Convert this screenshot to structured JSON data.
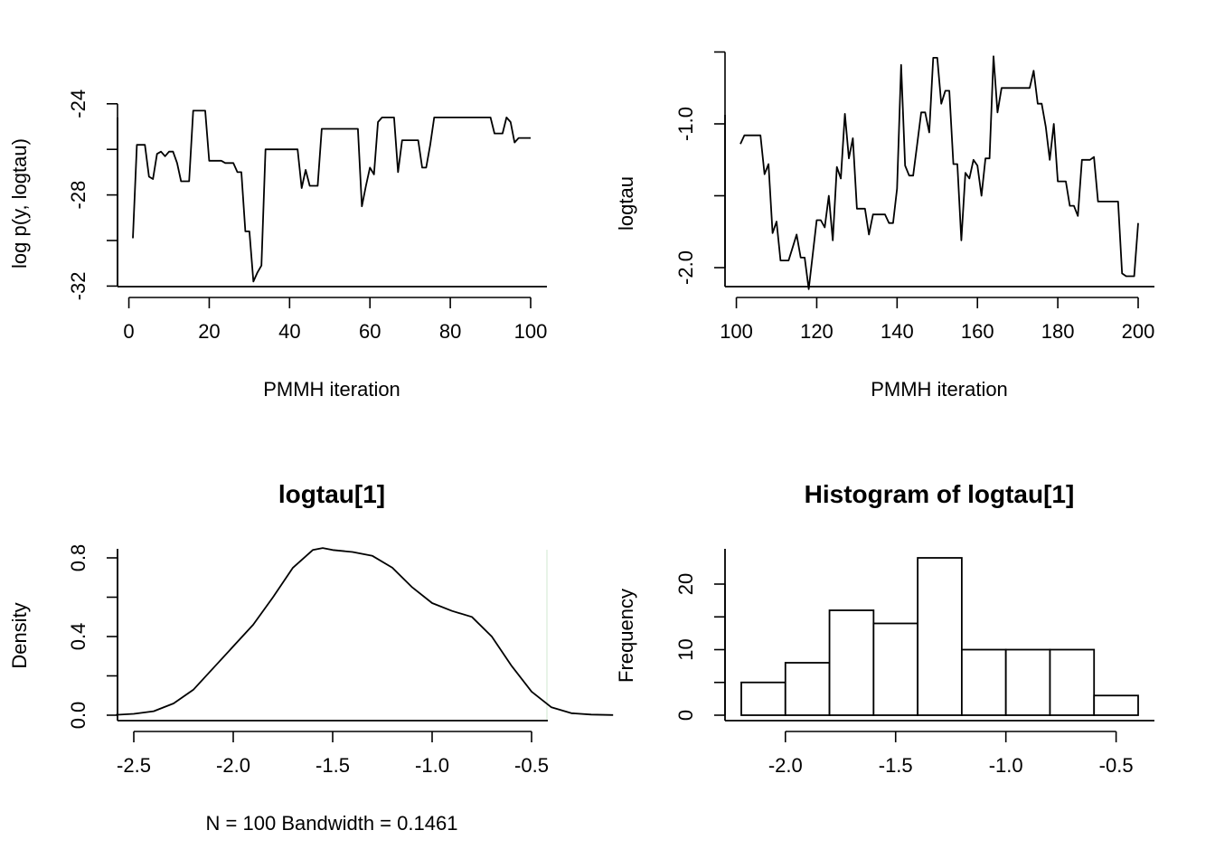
{
  "chart_data": [
    {
      "type": "line",
      "title": "",
      "xlabel": "PMMH iteration",
      "ylabel": "log p(y, logtau)",
      "xlim": [
        1,
        100
      ],
      "ylim": [
        -31.9,
        -24.3
      ],
      "xticks": [
        0,
        20,
        40,
        60,
        80,
        100
      ],
      "xtick_labels": [
        "0",
        "20",
        "40",
        "60",
        "80",
        "100"
      ],
      "yticks": [
        -32,
        -30,
        -28,
        -26,
        -24
      ],
      "ytick_labels": [
        "-32",
        "",
        "-28",
        "",
        "-24"
      ],
      "grid": false,
      "series": [
        {
          "x": [
            1,
            2,
            3,
            4,
            5,
            6,
            7,
            8,
            9,
            10,
            11,
            12,
            13,
            14,
            15,
            16,
            17,
            18,
            19,
            20,
            21,
            22,
            23,
            24,
            25,
            26,
            27,
            28,
            29,
            30,
            31,
            32,
            33,
            34,
            35,
            36,
            37,
            38,
            39,
            40,
            41,
            42,
            43,
            44,
            45,
            46,
            47,
            48,
            49,
            50,
            51,
            52,
            53,
            54,
            55,
            56,
            57,
            58,
            59,
            60,
            61,
            62,
            63,
            64,
            65,
            66,
            67,
            68,
            69,
            70,
            71,
            72,
            73,
            74,
            75,
            76,
            77,
            78,
            79,
            80,
            81,
            82,
            83,
            84,
            85,
            86,
            87,
            88,
            89,
            90,
            91,
            92,
            93,
            94,
            95,
            96,
            97,
            98,
            99,
            100
          ],
          "y": [
            -29.9,
            -25.8,
            -25.8,
            -25.8,
            -27.2,
            -27.3,
            -26.2,
            -26.1,
            -26.3,
            -26.1,
            -26.1,
            -26.6,
            -27.4,
            -27.4,
            -27.4,
            -24.3,
            -24.3,
            -24.3,
            -24.3,
            -26.5,
            -26.5,
            -26.5,
            -26.5,
            -26.6,
            -26.6,
            -26.6,
            -27.0,
            -27.0,
            -29.6,
            -29.6,
            -31.8,
            -31.4,
            -31.1,
            -26.0,
            -26.0,
            -26.0,
            -26.0,
            -26.0,
            -26.0,
            -26.0,
            -26.0,
            -26.0,
            -27.7,
            -26.9,
            -27.6,
            -27.6,
            -27.6,
            -25.1,
            -25.1,
            -25.1,
            -25.1,
            -25.1,
            -25.1,
            -25.1,
            -25.1,
            -25.1,
            -25.1,
            -28.5,
            -27.6,
            -26.8,
            -27.1,
            -24.8,
            -24.6,
            -24.6,
            -24.6,
            -24.6,
            -27.0,
            -25.6,
            -25.6,
            -25.6,
            -25.6,
            -25.6,
            -26.8,
            -26.8,
            -25.8,
            -24.6,
            -24.6,
            -24.6,
            -24.6,
            -24.6,
            -24.6,
            -24.6,
            -24.6,
            -24.6,
            -24.6,
            -24.6,
            -24.6,
            -24.6,
            -24.6,
            -24.6,
            -25.3,
            -25.3,
            -25.3,
            -24.6,
            -24.8,
            -25.7,
            -25.5,
            -25.5,
            -25.5,
            -25.5
          ]
        }
      ]
    },
    {
      "type": "line",
      "title": "",
      "xlabel": "PMMH iteration",
      "ylabel": "logtau",
      "xlim": [
        101,
        200
      ],
      "ylim": [
        -2.16,
        -0.47
      ],
      "xticks": [
        100,
        120,
        140,
        160,
        180,
        200
      ],
      "xtick_labels": [
        "100",
        "120",
        "140",
        "160",
        "180",
        "200"
      ],
      "yticks": [
        -2.0,
        -1.5,
        -1.0,
        -0.5
      ],
      "ytick_labels": [
        "-2.0",
        "",
        "-1.0",
        ""
      ],
      "grid": false,
      "series": [
        {
          "x": [
            101,
            102,
            103,
            104,
            105,
            106,
            107,
            108,
            109,
            110,
            111,
            112,
            113,
            114,
            115,
            116,
            117,
            118,
            119,
            120,
            121,
            122,
            123,
            124,
            125,
            126,
            127,
            128,
            129,
            130,
            131,
            132,
            133,
            134,
            135,
            136,
            137,
            138,
            139,
            140,
            141,
            142,
            143,
            144,
            145,
            146,
            147,
            148,
            149,
            150,
            151,
            152,
            153,
            154,
            155,
            156,
            157,
            158,
            159,
            160,
            161,
            162,
            163,
            164,
            165,
            166,
            167,
            168,
            169,
            170,
            171,
            172,
            173,
            174,
            175,
            176,
            177,
            178,
            179,
            180,
            181,
            182,
            183,
            184,
            185,
            186,
            187,
            188,
            189,
            190,
            191,
            192,
            193,
            194,
            195,
            196,
            197,
            198,
            199,
            200
          ],
          "y": [
            -1.14,
            -1.08,
            -1.08,
            -1.08,
            -1.08,
            -1.08,
            -1.35,
            -1.28,
            -1.76,
            -1.68,
            -1.95,
            -1.95,
            -1.95,
            -1.86,
            -1.77,
            -1.93,
            -1.93,
            -2.15,
            -1.91,
            -1.67,
            -1.67,
            -1.72,
            -1.5,
            -1.81,
            -1.3,
            -1.38,
            -0.93,
            -1.24,
            -1.1,
            -1.59,
            -1.59,
            -1.59,
            -1.77,
            -1.63,
            -1.63,
            -1.63,
            -1.63,
            -1.69,
            -1.69,
            -1.45,
            -0.59,
            -1.29,
            -1.36,
            -1.36,
            -1.14,
            -0.92,
            -0.92,
            -1.06,
            -0.54,
            -0.54,
            -0.86,
            -0.77,
            -0.77,
            -1.28,
            -1.28,
            -1.81,
            -1.34,
            -1.38,
            -1.25,
            -1.29,
            -1.5,
            -1.24,
            -1.24,
            -0.53,
            -0.92,
            -0.75,
            -0.75,
            -0.75,
            -0.75,
            -0.75,
            -0.75,
            -0.75,
            -0.75,
            -0.63,
            -0.86,
            -0.86,
            -1.02,
            -1.25,
            -1.0,
            -1.4,
            -1.4,
            -1.4,
            -1.57,
            -1.57,
            -1.64,
            -1.25,
            -1.25,
            -1.25,
            -1.23,
            -1.54,
            -1.54,
            -1.54,
            -1.54,
            -1.54,
            -1.54,
            -2.04,
            -2.06,
            -2.06,
            -2.06,
            -1.69
          ]
        }
      ]
    },
    {
      "type": "line",
      "title": "logtau[1]",
      "xlabel": "N = 100   Bandwidth = 0.1461",
      "ylabel": "Density",
      "xlim": [
        -2.6,
        -0.1
      ],
      "ylim": [
        0,
        0.85
      ],
      "xticks": [
        -2.5,
        -2.0,
        -1.5,
        -1.0,
        -0.5
      ],
      "xtick_labels": [
        "-2.5",
        "-2.0",
        "-1.5",
        "-1.0",
        "-0.5"
      ],
      "yticks": [
        0.0,
        0.2,
        0.4,
        0.6,
        0.8
      ],
      "ytick_labels": [
        "0.0",
        "",
        "0.4",
        "",
        "0.8"
      ],
      "grid": false,
      "series": [
        {
          "x": [
            -2.59,
            -2.5,
            -2.4,
            -2.3,
            -2.2,
            -2.1,
            -2.0,
            -1.9,
            -1.8,
            -1.7,
            -1.6,
            -1.55,
            -1.5,
            -1.4,
            -1.3,
            -1.2,
            -1.1,
            -1.0,
            -0.9,
            -0.8,
            -0.7,
            -0.6,
            -0.5,
            -0.4,
            -0.3,
            -0.2,
            -0.09
          ],
          "y": [
            0.002,
            0.007,
            0.02,
            0.06,
            0.13,
            0.24,
            0.35,
            0.46,
            0.6,
            0.75,
            0.84,
            0.85,
            0.84,
            0.83,
            0.81,
            0.75,
            0.65,
            0.57,
            0.53,
            0.5,
            0.4,
            0.25,
            0.12,
            0.04,
            0.01,
            0.003,
            0.001
          ]
        }
      ]
    },
    {
      "type": "bar",
      "title": "Histogram of logtau[1]",
      "xlabel": "",
      "ylabel": "Frequency",
      "xlim": [
        -2.2,
        -0.4
      ],
      "ylim": [
        0,
        24
      ],
      "xticks": [
        -2.0,
        -1.5,
        -1.0,
        -0.5
      ],
      "xtick_labels": [
        "-2.0",
        "-1.5",
        "-1.0",
        "-0.5"
      ],
      "yticks": [
        0,
        5,
        10,
        15,
        20
      ],
      "ytick_labels": [
        "0",
        "",
        "10",
        "",
        "20"
      ],
      "grid": false,
      "bins": [
        [
          -2.2,
          -2.0
        ],
        [
          -2.0,
          -1.8
        ],
        [
          -1.8,
          -1.6
        ],
        [
          -1.6,
          -1.4
        ],
        [
          -1.4,
          -1.2
        ],
        [
          -1.2,
          -1.0
        ],
        [
          -1.0,
          -0.8
        ],
        [
          -0.8,
          -0.6
        ],
        [
          -0.6,
          -0.4
        ]
      ],
      "values": [
        5,
        8,
        16,
        14,
        24,
        10,
        10,
        10,
        3
      ]
    }
  ]
}
